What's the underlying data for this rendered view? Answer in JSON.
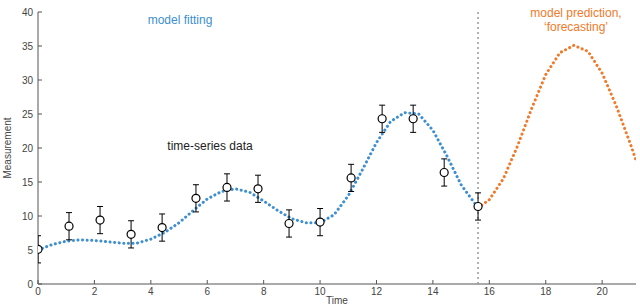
{
  "chart_data": {
    "type": "line",
    "x_label": "Time",
    "y_label": "Measurement",
    "xlim": [
      0,
      21.2
    ],
    "ylim": [
      0,
      40
    ],
    "xticks": [
      0,
      2,
      4,
      6,
      8,
      10,
      12,
      14,
      16,
      18,
      20
    ],
    "yticks": [
      0,
      5,
      10,
      15,
      20,
      25,
      30,
      35,
      40
    ],
    "grid": false,
    "series": [
      {
        "name": "time-series data",
        "type": "scatter",
        "marker": "circle",
        "color": "#000000",
        "x": [
          0,
          1.1,
          2.2,
          3.3,
          4.4,
          5.6,
          6.7,
          7.8,
          8.9,
          10,
          11.1,
          12.2,
          13.3,
          14.4,
          15.6
        ],
        "values": [
          5.1,
          8.5,
          9.4,
          7.3,
          8.3,
          12.6,
          14.2,
          14.0,
          8.9,
          9.1,
          15.6,
          24.3,
          24.3,
          16.4,
          11.4
        ],
        "errors": [
          2,
          2,
          2,
          2,
          2,
          2,
          2,
          2,
          2,
          2,
          2,
          2,
          2,
          2,
          2
        ]
      },
      {
        "name": "model fitting",
        "type": "line",
        "line_style": "dotted",
        "color": "#3d8fcf",
        "x": [
          0,
          0.5,
          1,
          1.5,
          2,
          2.5,
          3,
          3.5,
          4,
          4.5,
          5,
          5.5,
          6,
          6.5,
          7,
          7.5,
          8,
          8.5,
          9,
          9.5,
          10,
          10.5,
          11,
          11.5,
          12,
          12.5,
          13,
          13.5,
          14,
          14.5,
          15,
          15.6
        ],
        "values": [
          5.0,
          5.8,
          6.3,
          6.5,
          6.4,
          6.2,
          6.0,
          6.0,
          6.6,
          7.6,
          9.0,
          10.8,
          12.5,
          13.6,
          14.0,
          13.5,
          12.2,
          10.8,
          9.6,
          9.0,
          9.0,
          10.2,
          13.0,
          16.8,
          20.8,
          23.9,
          25.2,
          25.0,
          22.6,
          18.8,
          14.6,
          11.2
        ]
      },
      {
        "name": "model prediction, ‘forecasting’",
        "type": "line",
        "line_style": "dotted",
        "color": "#f07a2a",
        "x": [
          15.6,
          16,
          16.5,
          17,
          17.5,
          18,
          18.5,
          19,
          19.5,
          20,
          20.5,
          21,
          21.2
        ],
        "values": [
          11.2,
          12.4,
          15.5,
          20.3,
          25.8,
          30.8,
          34.0,
          35.1,
          34.2,
          31.0,
          26.2,
          20.6,
          18.2
        ]
      }
    ]
  }
}
